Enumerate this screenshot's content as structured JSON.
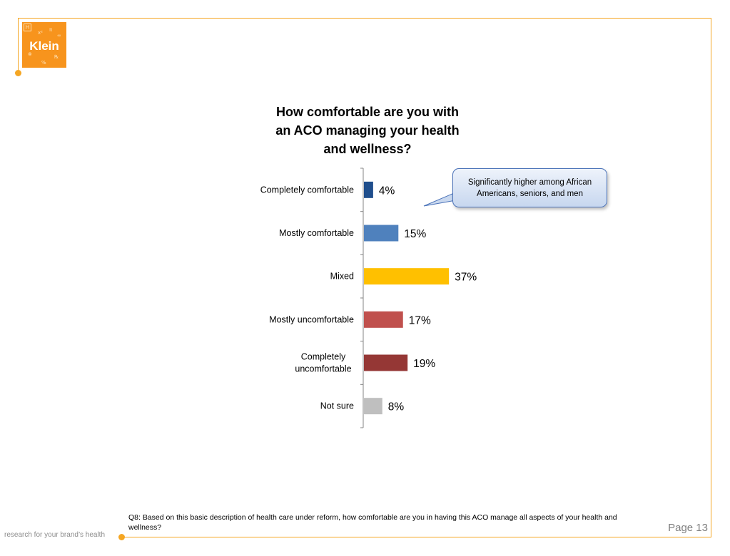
{
  "brand": {
    "logo_text": "Klein",
    "tagline": "research for your brand’s health",
    "accent_color": "#f5a623",
    "logo_color": "#f7941d"
  },
  "chart_data": {
    "type": "bar",
    "orientation": "horizontal",
    "title": "How comfortable are you with an ACO managing your health and wellness?",
    "categories": [
      "Completely comfortable",
      "Mostly comfortable",
      "Mixed",
      "Mostly uncomfortable",
      "Completely uncomfortable",
      "Not sure"
    ],
    "values": [
      4,
      15,
      37,
      17,
      19,
      8
    ],
    "value_labels": [
      "4%",
      "15%",
      "37%",
      "17%",
      "19%",
      "8%"
    ],
    "colors": [
      "#1f4e8c",
      "#4f81bd",
      "#ffc000",
      "#c0504d",
      "#953735",
      "#bfbfbf"
    ],
    "unit": "%",
    "xlabel": "",
    "ylabel": "",
    "xlim": [
      0,
      100
    ],
    "grid": false,
    "legend": "none"
  },
  "callout": {
    "text": "Significantly higher among African Americans, seniors, and men"
  },
  "footnote": "Q8: Based on this basic description of health care under reform, how comfortable are you in having this ACO manage all aspects of your health and wellness?",
  "page_label": "Page 13"
}
